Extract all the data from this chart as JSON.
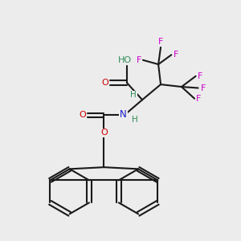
{
  "bg_color": "#ececec",
  "bond_color": "#1a1a1a",
  "O_color": "#cc0000",
  "N_color": "#1a1acc",
  "F_color": "#cc00cc",
  "H_color": "#2e8b57",
  "line_width": 1.5,
  "fig_size": [
    3.0,
    3.0
  ],
  "dpi": 100,
  "xlim": [
    0,
    10
  ],
  "ylim": [
    0,
    10
  ]
}
